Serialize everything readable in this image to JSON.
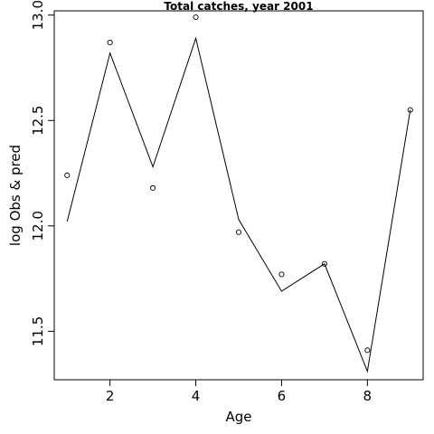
{
  "chart_data": {
    "type": "line",
    "title": "Total catches, year 2001",
    "xlabel": "Age",
    "ylabel": "log Obs & pred",
    "xlim": [
      0.7,
      9.3
    ],
    "ylim": [
      11.27,
      13.02
    ],
    "x_ticks": [
      2,
      4,
      6,
      8
    ],
    "y_ticks": [
      11.5,
      12.0,
      12.5,
      13.0
    ],
    "y_tick_labels": [
      "11.5",
      "12.0",
      "12.5",
      "13.0"
    ],
    "grid": false,
    "series": [
      {
        "style": "points",
        "x": [
          1,
          2,
          3,
          4,
          5,
          6,
          7,
          8,
          9
        ],
        "values": [
          12.24,
          12.87,
          12.18,
          12.99,
          11.97,
          11.77,
          11.82,
          11.41,
          12.55
        ]
      },
      {
        "style": "line",
        "x": [
          1,
          2,
          3,
          4,
          5,
          6,
          7,
          8,
          9
        ],
        "values": [
          12.02,
          12.82,
          12.28,
          12.89,
          12.03,
          11.69,
          11.82,
          11.31,
          12.55
        ]
      }
    ]
  }
}
